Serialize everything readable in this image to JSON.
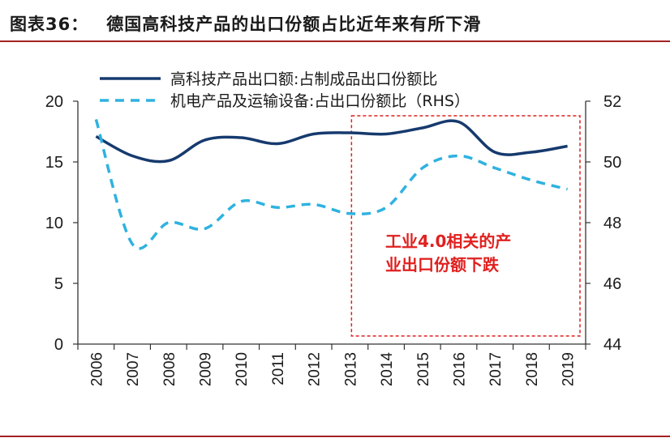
{
  "figure": {
    "title_label": "图表36：",
    "title_text": "德国高科技产品的出口份额占比近年来有所下滑"
  },
  "colors": {
    "rule": "#a32222",
    "series_primary": "#163a6e",
    "series_secondary": "#2fb2e0",
    "highlight_box": "#e0201e"
  },
  "chart_data": {
    "type": "line",
    "x": [
      "2006",
      "2007",
      "2008",
      "2009",
      "2010",
      "2011",
      "2012",
      "2013",
      "2014",
      "2015",
      "2016",
      "2017",
      "2018",
      "2019"
    ],
    "y_left": {
      "ylim": [
        0,
        20
      ],
      "ticks": [
        "0",
        "5",
        "10",
        "15",
        "20"
      ]
    },
    "y_right": {
      "ylim": [
        44,
        52
      ],
      "ticks": [
        "44",
        "46",
        "48",
        "50",
        "52"
      ]
    },
    "series": [
      {
        "name": "高科技产品出口额:占制成品出口份额比",
        "axis": "left",
        "style": "solid",
        "values": [
          17.1,
          15.5,
          15.1,
          16.8,
          17.0,
          16.5,
          17.3,
          17.4,
          17.3,
          17.8,
          18.3,
          15.8,
          15.8,
          16.3
        ]
      },
      {
        "name": "机电产品及运输设备:占出口份额比（RHS）",
        "axis": "right",
        "style": "dashed",
        "values": [
          51.4,
          47.3,
          48.0,
          47.8,
          48.7,
          48.5,
          48.6,
          48.3,
          48.5,
          49.8,
          50.2,
          49.8,
          49.4,
          49.1
        ]
      }
    ],
    "annotation": {
      "text_line1": "工业4.0相关的产",
      "text_line2": "业出口份额下跌",
      "x_range": [
        "2013",
        "2019"
      ]
    },
    "legend_position": "top",
    "grid": false
  }
}
